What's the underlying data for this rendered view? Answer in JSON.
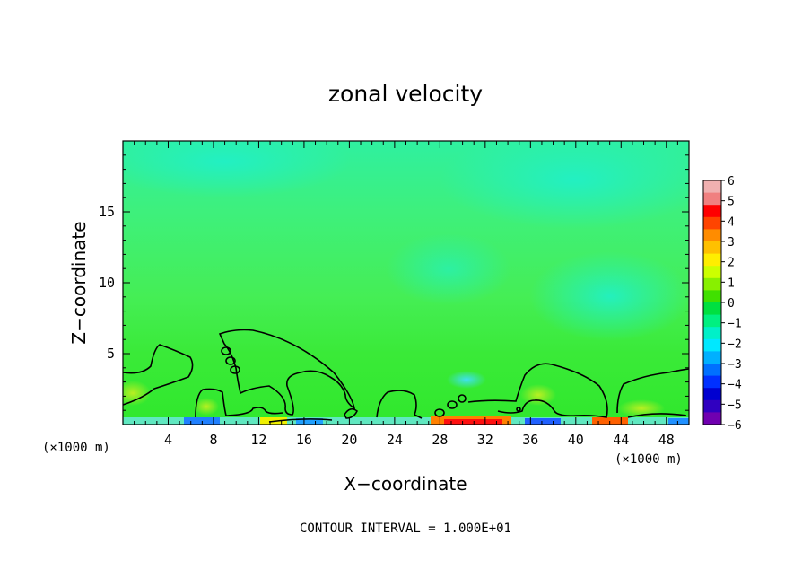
{
  "chart_data": {
    "type": "heatmap",
    "title": "zonal velocity",
    "xlabel": "X−coordinate",
    "ylabel": "Z−coordinate",
    "x_unit_label": "(×1000 m)",
    "y_unit_label": "(×1000 m)",
    "footer": "CONTOUR INTERVAL = 1.000E+01",
    "xlim": [
      0,
      50
    ],
    "ylim": [
      0,
      20
    ],
    "x_ticks": [
      "4",
      "8",
      "12",
      "16",
      "20",
      "24",
      "28",
      "32",
      "36",
      "40",
      "44",
      "48"
    ],
    "x_tick_values": [
      4,
      8,
      12,
      16,
      20,
      24,
      28,
      32,
      36,
      40,
      44,
      48
    ],
    "y_ticks": [
      "5",
      "10",
      "15"
    ],
    "y_tick_values": [
      5,
      10,
      15
    ],
    "colorbar": {
      "labels": [
        "6",
        "5",
        "4",
        "3",
        "2",
        "1",
        "0",
        "−1",
        "−2",
        "−3",
        "−4",
        "−5",
        "−6"
      ],
      "values": [
        6,
        5,
        4,
        3,
        2,
        1,
        0,
        -1,
        -2,
        -3,
        -4,
        -5,
        -6
      ],
      "colors": [
        "#f0b0b0",
        "#f08080",
        "#ff0000",
        "#ff4400",
        "#ff8c00",
        "#ffc000",
        "#ffee00",
        "#ccff00",
        "#88f000",
        "#40e000",
        "#00e040",
        "#00f080",
        "#00f0c8",
        "#00e8ff",
        "#00b0ff",
        "#0070ff",
        "#0030ff",
        "#0000d0",
        "#3000c0",
        "#7000b0"
      ]
    }
  }
}
